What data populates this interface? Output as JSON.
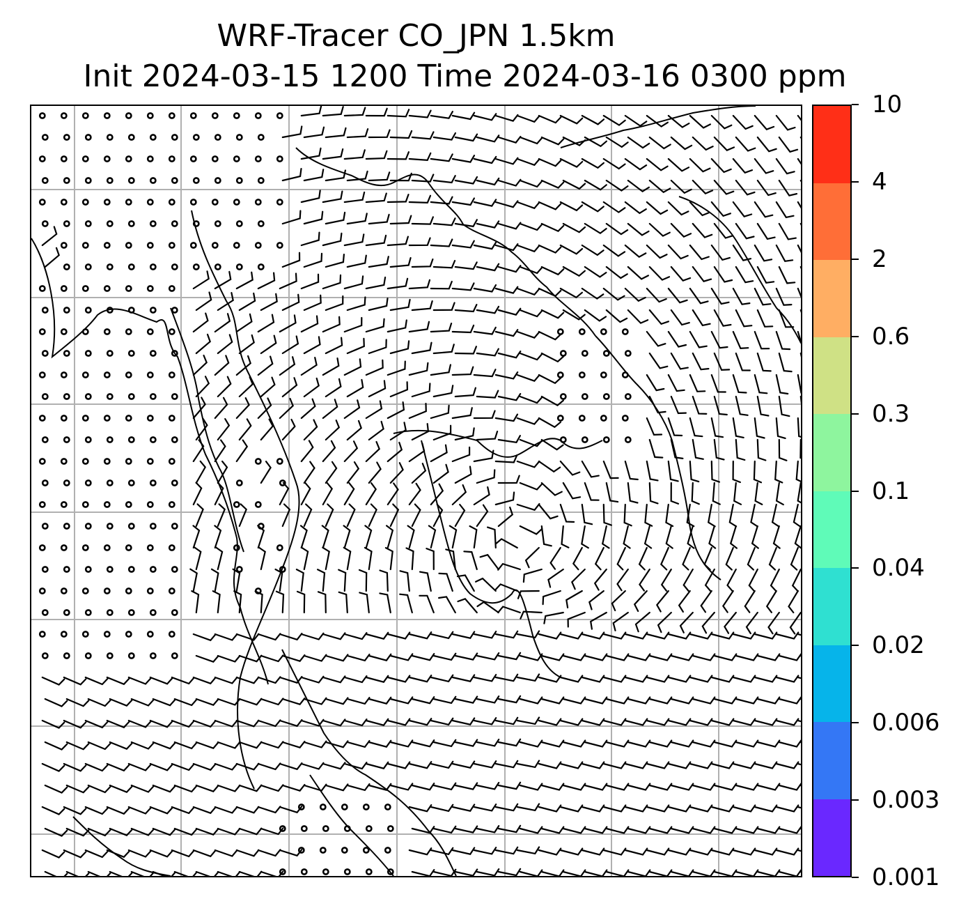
{
  "figure": {
    "title_line_1": "WRF-Tracer CO_JPN 1.5km",
    "title_line_2": "Init 2024-03-15 1200 Time 2024-03-16 0300 ppm"
  },
  "map": {
    "layers": [
      "gridlines",
      "coastlines",
      "wind-barbs",
      "calm-wind-circles"
    ],
    "gridline_color": "#b0b0b0",
    "coastline_color": "#000000",
    "barb_color": "#000000"
  },
  "colorbar": {
    "unit": "ppm",
    "levels": [
      "0.001",
      "0.003",
      "0.006",
      "0.02",
      "0.04",
      "0.1",
      "0.3",
      "0.6",
      "2",
      "4",
      "10"
    ],
    "colors": [
      "#6a28ff",
      "#3477f5",
      "#06b4ea",
      "#2fe0d1",
      "#5ffbb8",
      "#8ef59e",
      "#cfe185",
      "#ffae63",
      "#ff6e37",
      "#ff2f17"
    ]
  }
}
